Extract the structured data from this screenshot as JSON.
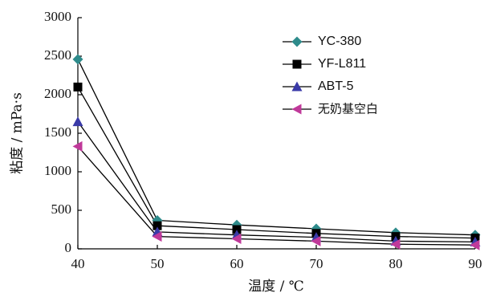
{
  "chart_data": {
    "type": "line",
    "title": "",
    "xlabel": "温度 / ℃",
    "ylabel": "粘度 / mPa·s",
    "x": [
      40,
      50,
      60,
      70,
      80,
      90
    ],
    "xlim": [
      40,
      90
    ],
    "ylim": [
      0,
      3000
    ],
    "x_ticks": [
      "40",
      "50",
      "60",
      "70",
      "80",
      "90"
    ],
    "y_ticks": [
      "0",
      "500",
      "1000",
      "1500",
      "2000",
      "2500",
      "3000"
    ],
    "grid": false,
    "legend_position": "top-right",
    "series": [
      {
        "name": "YC-380",
        "marker": "diamond",
        "color": "#2e8b8b",
        "values": [
          2460,
          370,
          310,
          260,
          210,
          180
        ]
      },
      {
        "name": "YF-L811",
        "marker": "square",
        "color": "#000000",
        "values": [
          2100,
          300,
          250,
          200,
          160,
          140
        ]
      },
      {
        "name": "ABT-5",
        "marker": "triangle-up",
        "color": "#3a3aa8",
        "values": [
          1650,
          220,
          180,
          150,
          100,
          90
        ]
      },
      {
        "name": "无奶基空白",
        "marker": "triangle-left",
        "color": "#c0399a",
        "values": [
          1330,
          160,
          130,
          100,
          60,
          50
        ]
      }
    ]
  }
}
